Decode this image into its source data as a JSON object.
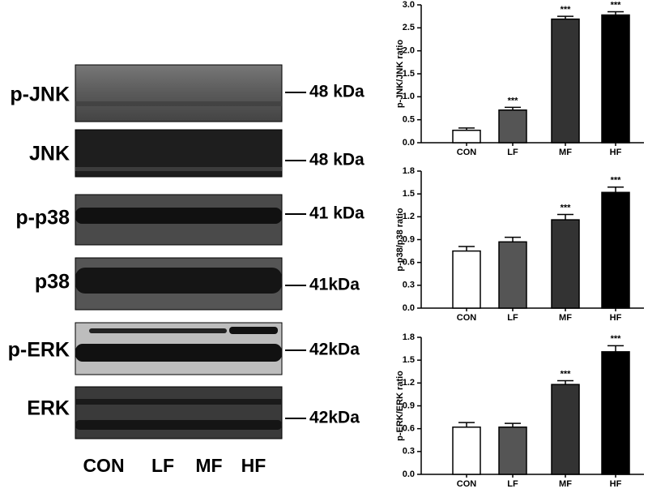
{
  "blot": {
    "rows": [
      {
        "label": "p-JNK",
        "size": "48 kDa"
      },
      {
        "label": "JNK",
        "size": "48 kDa"
      },
      {
        "label": "p-p38",
        "size": "41 kDa"
      },
      {
        "label": "p38",
        "size": "41kDa"
      },
      {
        "label": "p-ERK",
        "size": "42kDa"
      },
      {
        "label": "ERK",
        "size": "42kDa"
      }
    ],
    "lanes": [
      "CON",
      "LF",
      "MF",
      "HF"
    ]
  },
  "chart_data": [
    {
      "type": "bar",
      "y_label": "p-JNK/JNK ratio",
      "categories": [
        "CON",
        "LF",
        "MF",
        "HF"
      ],
      "values": [
        0.27,
        0.71,
        2.69,
        2.78
      ],
      "errors": [
        0.05,
        0.06,
        0.06,
        0.07
      ],
      "annotations": [
        null,
        "***",
        "***",
        "***"
      ],
      "colors": [
        "#ffffff",
        "#555555",
        "#333333",
        "#000000"
      ],
      "ylim": [
        0,
        3
      ],
      "yticks": [
        {
          "value": 0,
          "label": "0.0"
        },
        0.5,
        {
          "value": 1,
          "label": "1.0"
        },
        1.5,
        {
          "value": 2,
          "label": "2.0"
        },
        2.5,
        {
          "value": 3,
          "label": "3.0"
        }
      ]
    },
    {
      "type": "bar",
      "y_label": "p-p38/p38 ratio",
      "categories": [
        "CON",
        "LF",
        "MF",
        "HF"
      ],
      "values": [
        0.75,
        0.87,
        1.16,
        1.52
      ],
      "errors": [
        0.06,
        0.06,
        0.07,
        0.07
      ],
      "annotations": [
        null,
        null,
        "***",
        "***"
      ],
      "colors": [
        "#ffffff",
        "#555555",
        "#333333",
        "#000000"
      ],
      "ylim": [
        0,
        1.8
      ],
      "yticks": [
        {
          "value": 0,
          "label": "0.0"
        },
        0.3,
        0.6,
        0.9,
        1.2,
        1.5,
        1.8
      ]
    },
    {
      "type": "bar",
      "y_label": "p-ERK/ERK ratio",
      "categories": [
        "CON",
        "LF",
        "MF",
        "HF"
      ],
      "values": [
        0.62,
        0.62,
        1.18,
        1.61
      ],
      "errors": [
        0.06,
        0.05,
        0.05,
        0.08
      ],
      "annotations": [
        null,
        null,
        "***",
        "***"
      ],
      "colors": [
        "#ffffff",
        "#555555",
        "#333333",
        "#000000"
      ],
      "ylim": [
        0,
        1.8
      ],
      "yticks": [
        {
          "value": 0,
          "label": "0.0"
        },
        0.3,
        0.6,
        0.9,
        1.2,
        1.5,
        1.8
      ]
    }
  ]
}
